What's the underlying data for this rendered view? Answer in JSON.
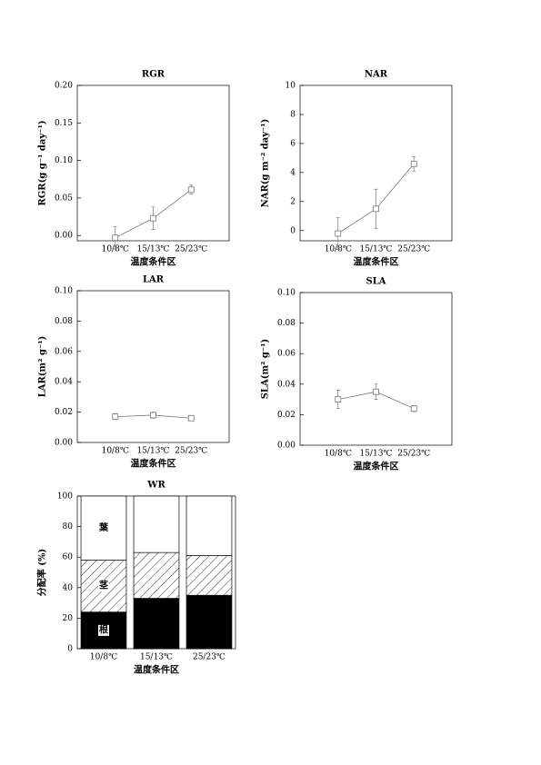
{
  "chart_data": [
    {
      "type": "line",
      "title": "RGR",
      "ylabel": "RGR(g g⁻¹ day⁻¹)",
      "xlabel": "温度条件区",
      "categories": [
        "10/8℃",
        "15/13℃",
        "25/23℃"
      ],
      "values": [
        -0.003,
        0.023,
        0.061
      ],
      "errors": [
        0.015,
        0.015,
        0.006
      ],
      "color": "#777777",
      "ylim": [
        -0.007,
        0.2
      ],
      "yticks": [
        {
          "value": 0,
          "label": "0.00"
        },
        {
          "value": 0.05,
          "label": "0.05"
        },
        {
          "value": 0.1,
          "label": "0.10"
        },
        {
          "value": 0.15,
          "label": "0.15"
        },
        {
          "value": 0.2,
          "label": "0.20"
        }
      ]
    },
    {
      "type": "line",
      "title": "NAR",
      "ylabel": "NAR(g m⁻² day⁻¹)",
      "xlabel": "温度条件区",
      "categories": [
        "10/8℃",
        "15/13℃",
        "25/23℃"
      ],
      "values": [
        -0.2,
        1.5,
        4.6
      ],
      "errors": [
        1.1,
        1.35,
        0.5
      ],
      "color": "#777777",
      "ylim": [
        -0.7,
        10
      ],
      "yticks": [
        0,
        2,
        4,
        6,
        8,
        10
      ]
    },
    {
      "type": "line",
      "title": "LAR",
      "ylabel": "LAR(m² g⁻¹)",
      "xlabel": "温度条件区",
      "categories": [
        "10/8℃",
        "15/13℃",
        "25/23℃"
      ],
      "values": [
        0.017,
        0.018,
        0.016
      ],
      "errors": [
        0.002,
        0.002,
        0.001
      ],
      "color": "#777777",
      "ylim": [
        0,
        0.1
      ],
      "yticks": [
        {
          "value": 0,
          "label": "0.00"
        },
        {
          "value": 0.02,
          "label": "0.02"
        },
        {
          "value": 0.04,
          "label": "0.04"
        },
        {
          "value": 0.06,
          "label": "0.06"
        },
        {
          "value": 0.08,
          "label": "0.08"
        },
        {
          "value": 0.1,
          "label": "0.10"
        }
      ]
    },
    {
      "type": "line",
      "title": "SLA",
      "ylabel": "SLA(m² g⁻¹)",
      "xlabel": "温度条件区",
      "categories": [
        "10/8℃",
        "15/13℃",
        "25/23℃"
      ],
      "values": [
        0.03,
        0.035,
        0.024
      ],
      "errors": [
        0.006,
        0.005,
        0.002
      ],
      "color": "#777777",
      "ylim": [
        0,
        0.1
      ],
      "yticks": [
        {
          "value": 0,
          "label": "0.00"
        },
        {
          "value": 0.02,
          "label": "0.02"
        },
        {
          "value": 0.04,
          "label": "0.04"
        },
        {
          "value": 0.06,
          "label": "0.06"
        },
        {
          "value": 0.08,
          "label": "0.08"
        },
        {
          "value": 0.1,
          "label": "0.10"
        }
      ]
    },
    {
      "type": "stacked-bar",
      "title": "WR",
      "ylabel": "分配率 (%)",
      "xlabel": "温度条件区",
      "categories": [
        "10/8℃",
        "15/13℃",
        "25/23℃"
      ],
      "series": [
        {
          "name": "根",
          "color": "#000000",
          "values": [
            24,
            33,
            35
          ]
        },
        {
          "name": "茎",
          "color": "#ffffff",
          "hatch": true,
          "values": [
            34,
            30,
            26
          ]
        },
        {
          "name": "葉",
          "color": "#ffffff",
          "values": [
            42,
            37,
            39
          ]
        }
      ],
      "ylim": [
        0,
        100
      ],
      "yticks": [
        0,
        20,
        40,
        60,
        80,
        100
      ]
    }
  ]
}
